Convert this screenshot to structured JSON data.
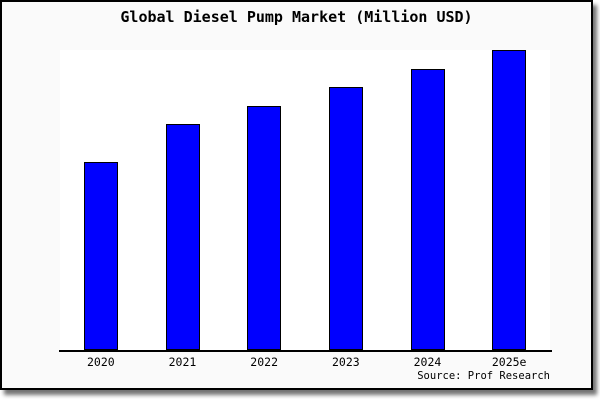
{
  "title": "Global Diesel Pump Market (Million USD)",
  "source": "Source: Prof Research",
  "colors": {
    "bar_fill": "#0000ff",
    "bar_border": "#000000",
    "card_background": "#fafafa",
    "plot_background": "#ffffff",
    "axis": "#000000",
    "text": "#000000"
  },
  "chart_data": {
    "type": "bar",
    "title": "Global Diesel Pump Market (Million USD)",
    "categories": [
      "2020",
      "2021",
      "2022",
      "2023",
      "2024",
      "2025e"
    ],
    "values": [
      62.7,
      75.2,
      81.3,
      87.7,
      93.7,
      100.0
    ],
    "value_note": "chart shows no y-axis ticks or data labels; values estimated as percent of tallest bar (2025e = 100)",
    "xlabel": "",
    "ylabel": "",
    "ylim": [
      0,
      100
    ],
    "grid": false,
    "legend": null,
    "source": "Source: Prof Research"
  }
}
